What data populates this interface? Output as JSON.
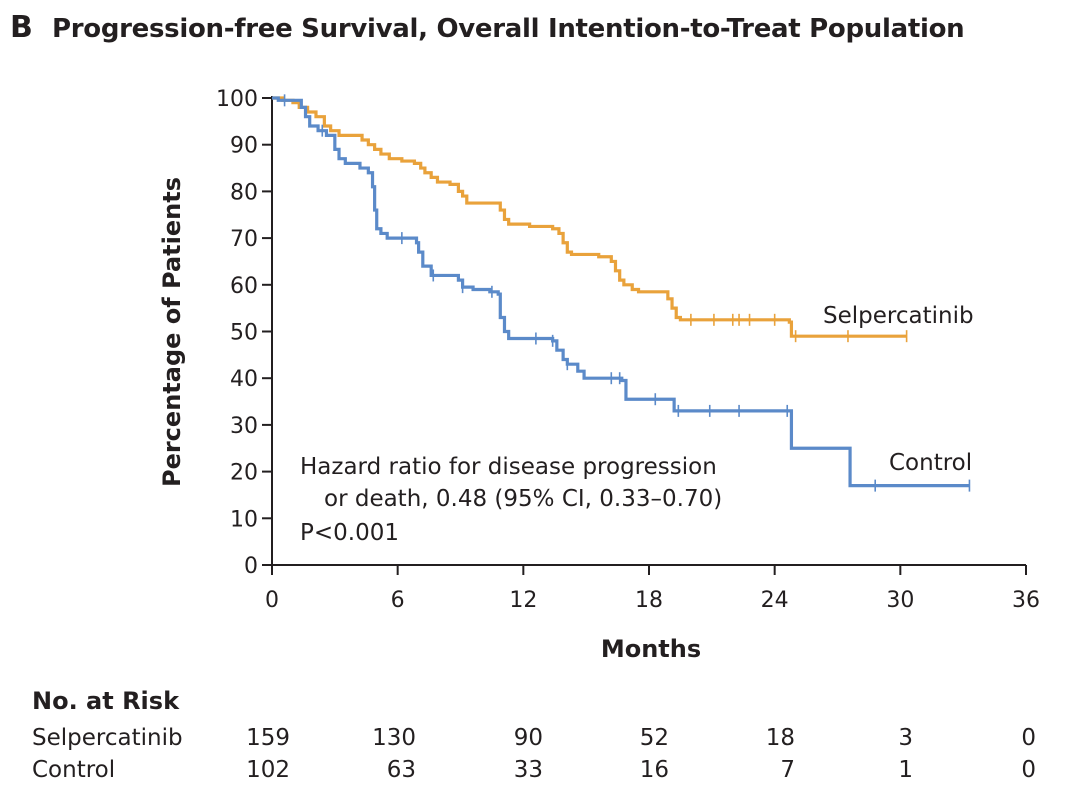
{
  "panel": {
    "letter": "B",
    "title": "Progression-free Survival, Overall Intention-to-Treat Population"
  },
  "chart_data": {
    "type": "line",
    "subtype": "kaplan-meier",
    "title": "Progression-free Survival, Overall Intention-to-Treat Population",
    "xlabel": "Months",
    "ylabel": "Percentage of Patients",
    "xlim": [
      0,
      36
    ],
    "ylim": [
      0,
      100
    ],
    "xticks": [
      0,
      6,
      12,
      18,
      24,
      30,
      36
    ],
    "yticks": [
      0,
      10,
      20,
      30,
      40,
      50,
      60,
      70,
      80,
      90,
      100
    ],
    "series": [
      {
        "name": "Selpercatinib",
        "label": "Selpercatinib",
        "color": "#e9a23b",
        "steps": [
          [
            0,
            100
          ],
          [
            0.5,
            99.5
          ],
          [
            1.0,
            99
          ],
          [
            1.3,
            98
          ],
          [
            1.7,
            97
          ],
          [
            2.1,
            96
          ],
          [
            2.5,
            94
          ],
          [
            2.8,
            93
          ],
          [
            3.2,
            92
          ],
          [
            4.3,
            91
          ],
          [
            4.6,
            90
          ],
          [
            4.9,
            89
          ],
          [
            5.2,
            88
          ],
          [
            5.6,
            87
          ],
          [
            6.2,
            86.5
          ],
          [
            6.8,
            86
          ],
          [
            7.1,
            85
          ],
          [
            7.3,
            84
          ],
          [
            7.6,
            83
          ],
          [
            7.9,
            82
          ],
          [
            8.5,
            81.5
          ],
          [
            8.9,
            80
          ],
          [
            9.1,
            79
          ],
          [
            9.3,
            77.5
          ],
          [
            10.9,
            76
          ],
          [
            11.1,
            74
          ],
          [
            11.3,
            73
          ],
          [
            12.3,
            72.5
          ],
          [
            13.4,
            72
          ],
          [
            13.7,
            71
          ],
          [
            13.9,
            69
          ],
          [
            14.1,
            67
          ],
          [
            14.3,
            66.5
          ],
          [
            15.6,
            66
          ],
          [
            16.2,
            65
          ],
          [
            16.4,
            63
          ],
          [
            16.6,
            61
          ],
          [
            16.8,
            60
          ],
          [
            17.2,
            59
          ],
          [
            17.5,
            58.5
          ],
          [
            18.9,
            57
          ],
          [
            19.1,
            55
          ],
          [
            19.3,
            53
          ],
          [
            19.5,
            52.5
          ],
          [
            24.7,
            52
          ],
          [
            24.8,
            49
          ],
          [
            30.3,
            49
          ]
        ],
        "censor_times": [
          20.0,
          21.1,
          22.0,
          22.3,
          22.8,
          24.0,
          25.0,
          27.5,
          30.3
        ]
      },
      {
        "name": "Control",
        "label": "Control",
        "color": "#5b8ac9",
        "steps": [
          [
            0,
            100
          ],
          [
            0.3,
            99.5
          ],
          [
            1.4,
            98
          ],
          [
            1.6,
            96
          ],
          [
            1.8,
            94
          ],
          [
            2.2,
            93
          ],
          [
            2.6,
            92
          ],
          [
            3.0,
            89
          ],
          [
            3.2,
            87
          ],
          [
            3.5,
            86
          ],
          [
            4.2,
            85
          ],
          [
            4.6,
            84
          ],
          [
            4.8,
            81
          ],
          [
            4.9,
            76
          ],
          [
            5.0,
            72
          ],
          [
            5.2,
            71
          ],
          [
            5.5,
            70
          ],
          [
            6.9,
            69
          ],
          [
            7.0,
            67
          ],
          [
            7.2,
            64
          ],
          [
            7.6,
            62
          ],
          [
            8.9,
            61
          ],
          [
            9.1,
            59.5
          ],
          [
            9.6,
            59
          ],
          [
            10.4,
            58.5
          ],
          [
            10.8,
            58
          ],
          [
            10.9,
            53
          ],
          [
            11.1,
            50
          ],
          [
            11.3,
            48.5
          ],
          [
            13.4,
            48
          ],
          [
            13.6,
            46
          ],
          [
            13.9,
            44
          ],
          [
            14.1,
            43
          ],
          [
            14.6,
            41.5
          ],
          [
            14.9,
            40
          ],
          [
            16.7,
            39.5
          ],
          [
            16.9,
            35.5
          ],
          [
            19.2,
            33
          ],
          [
            24.8,
            25
          ],
          [
            27.6,
            17
          ],
          [
            33.3,
            17
          ]
        ],
        "censor_times": [
          0.6,
          2.4,
          6.2,
          7.7,
          9.1,
          10.5,
          12.6,
          13.4,
          14.1,
          16.2,
          16.6,
          18.3,
          19.4,
          20.9,
          22.3,
          24.6,
          28.8,
          33.3
        ]
      }
    ],
    "annotation": {
      "line1": "Hazard ratio for disease progression",
      "line2": "or death, 0.48 (95% CI, 0.33–0.70)",
      "line3": "P<0.001"
    }
  },
  "risk_table": {
    "title": "No. at Risk",
    "rows": [
      {
        "name": "Selpercatinib",
        "values": [
          "159",
          "130",
          "90",
          "52",
          "18",
          "3",
          "0"
        ]
      },
      {
        "name": "Control",
        "values": [
          "102",
          "63",
          "33",
          "16",
          "7",
          "1",
          "0"
        ]
      }
    ]
  }
}
